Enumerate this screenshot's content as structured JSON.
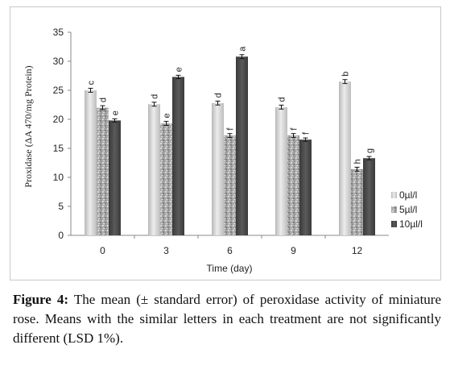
{
  "chart_data": {
    "type": "bar",
    "xlabel": "Time (day)",
    "ylabel": "Proxidase (ΔA 470/mg Protein)",
    "categories": [
      "0",
      "3",
      "6",
      "9",
      "12"
    ],
    "ylim": [
      0,
      35
    ],
    "yticks": [
      "0",
      "5",
      "10",
      "15",
      "20",
      "25",
      "30",
      "35"
    ],
    "grid": false,
    "legend_position": "right",
    "series": [
      {
        "name": "0µl/l",
        "color": "#c8c8c8",
        "values": [
          25.0,
          22.6,
          22.8,
          22.1,
          26.5
        ],
        "errors": [
          0.2,
          0.2,
          0.2,
          0.2,
          0.2
        ],
        "letters": [
          "c",
          "d",
          "d",
          "d",
          "b"
        ]
      },
      {
        "name": "5µl/l",
        "color": "#9a9a9a",
        "values": [
          22.0,
          19.3,
          17.2,
          17.2,
          11.4
        ],
        "errors": [
          0.2,
          0.2,
          0.2,
          0.2,
          0.2
        ],
        "letters": [
          "d",
          "e",
          "f",
          "f",
          "h"
        ]
      },
      {
        "name": "10µl/l",
        "color": "#454545",
        "values": [
          19.8,
          27.3,
          30.8,
          16.5,
          13.3
        ],
        "errors": [
          0.15,
          0.15,
          0.2,
          0.15,
          0.15
        ],
        "letters": [
          "e",
          "e",
          "a",
          "f",
          "g"
        ]
      }
    ]
  },
  "caption": {
    "label": "Figure 4:",
    "text": " The mean (± standard error) of peroxidase activity of miniature rose. Means with the similar letters in each treatment are not significantly different (LSD 1%)."
  }
}
